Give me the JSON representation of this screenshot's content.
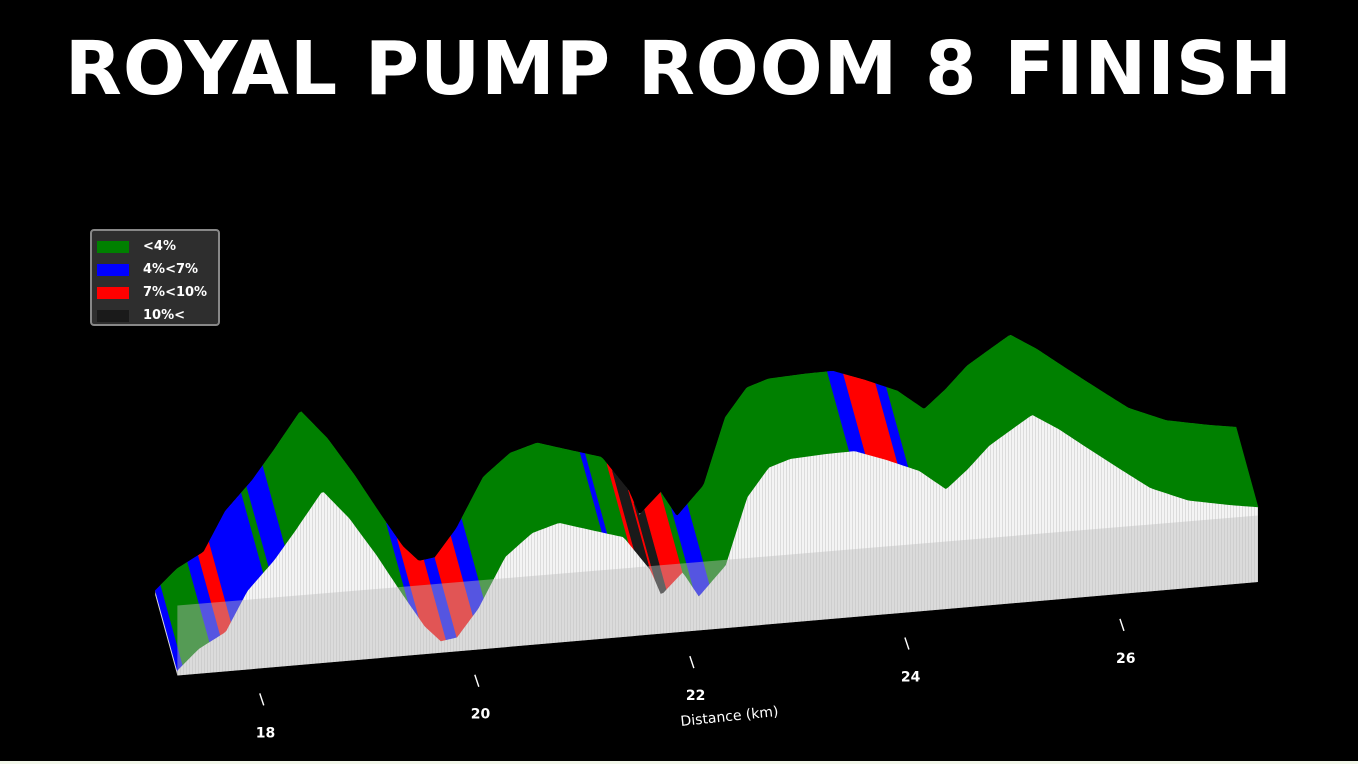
{
  "title": "ROYAL PUMP ROOM 8 FINISH",
  "chart_data": {
    "type": "area",
    "xlabel": "Distance (km)",
    "ylabel": "",
    "x_ticks": [
      18,
      20,
      22,
      24,
      26
    ],
    "xlim": [
      17.5,
      27.6
    ],
    "ylim": [
      0,
      100
    ],
    "legend_position": "top-left",
    "legend": [
      {
        "label": "<4%",
        "color": "#008000"
      },
      {
        "label": "4%<7%",
        "color": "#0000ff"
      },
      {
        "label": "7%<10%",
        "color": "#ff0000"
      },
      {
        "label": "10%<",
        "color": "#1a1a1a"
      }
    ],
    "profile": {
      "x": [
        17.55,
        17.75,
        18.0,
        18.2,
        18.45,
        18.65,
        18.9,
        19.15,
        19.4,
        19.65,
        19.85,
        20.0,
        20.15,
        20.35,
        20.6,
        20.85,
        21.1,
        21.4,
        21.7,
        21.95,
        22.05,
        22.25,
        22.4,
        22.65,
        22.85,
        23.05,
        23.25,
        23.6,
        23.85,
        24.15,
        24.45,
        24.7,
        24.9,
        25.1,
        25.3,
        25.5,
        25.75,
        26.0,
        26.3,
        26.6,
        26.95,
        27.15,
        27.35,
        27.6
      ],
      "y": [
        2,
        10,
        16,
        32,
        44,
        56,
        72,
        60,
        44,
        26,
        12,
        5,
        6,
        18,
        40,
        50,
        54,
        50,
        46,
        30,
        18,
        28,
        16,
        30,
        62,
        76,
        80,
        82,
        83,
        78,
        72,
        62,
        72,
        84,
        92,
        100,
        92,
        82,
        70,
        58,
        50,
        48,
        46,
        44
      ]
    },
    "gradient_segments": [
      {
        "from": 17.55,
        "to": 17.6,
        "class": "4%<7%"
      },
      {
        "from": 17.6,
        "to": 17.85,
        "class": "<4%"
      },
      {
        "from": 17.85,
        "to": 17.95,
        "class": "4%<7%"
      },
      {
        "from": 17.95,
        "to": 18.05,
        "class": "7%<10%"
      },
      {
        "from": 18.05,
        "to": 18.35,
        "class": "4%<7%"
      },
      {
        "from": 18.35,
        "to": 18.4,
        "class": "<4%"
      },
      {
        "from": 18.4,
        "to": 18.55,
        "class": "4%<7%"
      },
      {
        "from": 18.55,
        "to": 19.7,
        "class": "<4%"
      },
      {
        "from": 19.7,
        "to": 19.8,
        "class": "4%<7%"
      },
      {
        "from": 19.8,
        "to": 20.05,
        "class": "7%<10%"
      },
      {
        "from": 20.05,
        "to": 20.15,
        "class": "4%<7%"
      },
      {
        "from": 20.15,
        "to": 20.3,
        "class": "7%<10%"
      },
      {
        "from": 20.3,
        "to": 20.4,
        "class": "4%<7%"
      },
      {
        "from": 20.4,
        "to": 21.5,
        "class": "<4%"
      },
      {
        "from": 21.5,
        "to": 21.55,
        "class": "4%<7%"
      },
      {
        "from": 21.55,
        "to": 21.75,
        "class": "<4%"
      },
      {
        "from": 21.75,
        "to": 21.8,
        "class": "7%<10%"
      },
      {
        "from": 21.8,
        "to": 21.95,
        "class": "10%<"
      },
      {
        "from": 21.95,
        "to": 22.0,
        "class": "7%<10%"
      },
      {
        "from": 22.0,
        "to": 22.1,
        "class": "10%<"
      },
      {
        "from": 22.1,
        "to": 22.25,
        "class": "7%<10%"
      },
      {
        "from": 22.25,
        "to": 22.35,
        "class": "<4%"
      },
      {
        "from": 22.35,
        "to": 22.5,
        "class": "4%<7%"
      },
      {
        "from": 22.5,
        "to": 23.3,
        "class": "<4%"
      },
      {
        "from": 23.3,
        "to": 23.8,
        "class": "<4%"
      },
      {
        "from": 23.8,
        "to": 23.95,
        "class": "4%<7%"
      },
      {
        "from": 23.95,
        "to": 24.25,
        "class": "7%<10%"
      },
      {
        "from": 24.25,
        "to": 24.35,
        "class": "4%<7%"
      },
      {
        "from": 24.35,
        "to": 27.6,
        "class": "<4%"
      }
    ]
  }
}
